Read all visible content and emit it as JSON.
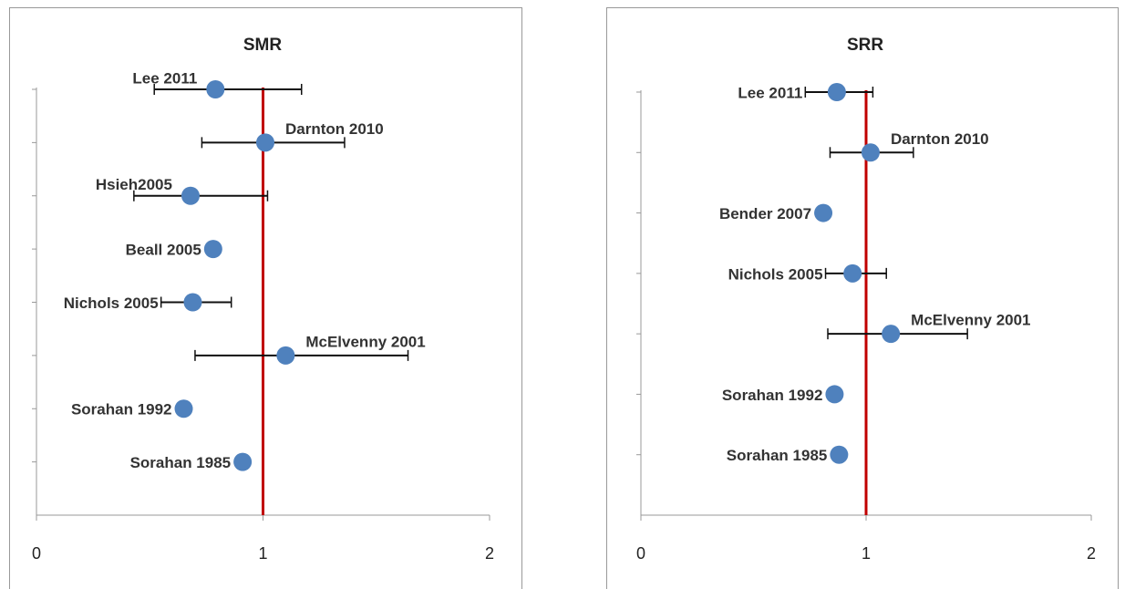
{
  "chart_data": [
    {
      "type": "forest",
      "title": "SMR",
      "categories": [
        "Lee 2011",
        "Darnton 2010",
        "Hsieh2005",
        "Beall 2005",
        "Nichols 2005",
        "McElvenny 2001",
        "Sorahan 1992",
        "Sorahan 1985"
      ],
      "values": [
        0.79,
        1.01,
        0.68,
        0.78,
        0.69,
        1.1,
        0.65,
        0.91
      ],
      "ci_low": [
        0.52,
        0.73,
        0.43,
        null,
        0.55,
        0.7,
        null,
        null
      ],
      "ci_high": [
        1.17,
        1.36,
        1.02,
        null,
        0.86,
        1.64,
        null,
        null
      ],
      "xlim": [
        0,
        2
      ],
      "xticks": [
        0,
        1,
        2
      ],
      "reference_line": 1,
      "color": "#4f81bd",
      "reference_color": "#c00000"
    },
    {
      "type": "forest",
      "title": "SRR",
      "categories": [
        "Lee 2011",
        "Darnton 2010",
        "Bender 2007",
        "Nichols 2005",
        "McElvenny 2001",
        "Sorahan 1992",
        "Sorahan 1985"
      ],
      "values": [
        0.87,
        1.02,
        0.81,
        0.94,
        1.11,
        0.86,
        0.88
      ],
      "ci_low": [
        0.73,
        0.84,
        null,
        0.82,
        0.83,
        null,
        null
      ],
      "ci_high": [
        1.03,
        1.21,
        null,
        1.09,
        1.45,
        null,
        null
      ],
      "xlim": [
        0,
        2
      ],
      "xticks": [
        0,
        1,
        2
      ],
      "reference_line": 1,
      "color": "#4f81bd",
      "reference_color": "#c00000"
    }
  ]
}
